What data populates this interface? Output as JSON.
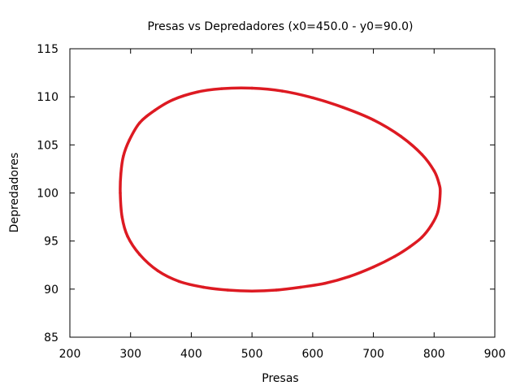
{
  "chart_data": {
    "type": "line",
    "title": "Presas vs Depredadores (x0=450.0 - y0=90.0)",
    "xlabel": "Presas",
    "ylabel": "Depredadores",
    "xlim": [
      200,
      900
    ],
    "ylim": [
      85,
      115
    ],
    "xticks": [
      200,
      300,
      400,
      500,
      600,
      700,
      800,
      900
    ],
    "yticks": [
      85,
      90,
      95,
      100,
      105,
      110,
      115
    ],
    "grid": false,
    "legend": "none",
    "series": [
      {
        "color": "#dd1a22",
        "x": [
          810,
          806,
          795,
          780,
          760,
          735,
          700,
          660,
          620,
          580,
          540,
          500,
          460,
          420,
          380,
          345,
          315,
          295,
          286,
          283,
          284,
          288,
          298,
          315,
          340,
          370,
          410,
          450,
          500,
          550,
          600,
          650,
          700,
          745,
          780,
          800,
          808,
          810
        ],
        "y": [
          100.0,
          98.0,
          96.6,
          95.4,
          94.4,
          93.4,
          92.3,
          91.3,
          90.6,
          90.2,
          89.9,
          89.8,
          89.9,
          90.2,
          90.8,
          91.9,
          93.6,
          95.5,
          97.5,
          100.0,
          102.0,
          103.8,
          105.5,
          107.3,
          108.6,
          109.7,
          110.5,
          110.85,
          110.9,
          110.6,
          109.9,
          108.9,
          107.6,
          105.9,
          104.0,
          102.3,
          101.0,
          100.0
        ]
      }
    ]
  }
}
